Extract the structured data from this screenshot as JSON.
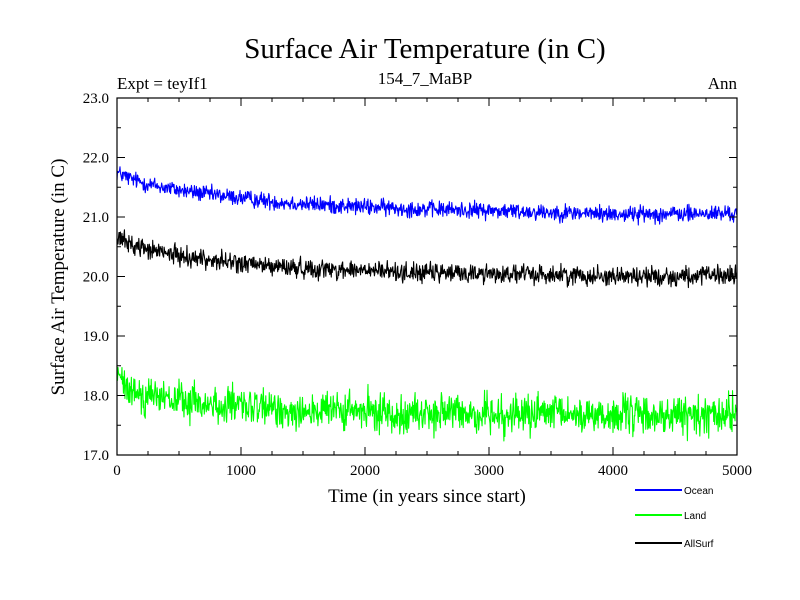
{
  "chart_data": {
    "type": "line",
    "title": "Surface Air Temperature (in C)",
    "subtitle_left": "Expt = teyIf1",
    "subtitle_center": "154_7_MaBP",
    "subtitle_right": "Ann",
    "xlabel": "Time (in years since start)",
    "ylabel": "Surface Air Temperature (in C)",
    "xlim": [
      0,
      5000
    ],
    "ylim": [
      17.0,
      23.0
    ],
    "xticks": [
      0,
      1000,
      2000,
      3000,
      4000,
      5000
    ],
    "xtick_labels": [
      "0",
      "1000",
      "2000",
      "3000",
      "4000",
      "5000"
    ],
    "yticks": [
      17.0,
      18.0,
      19.0,
      20.0,
      21.0,
      22.0,
      23.0
    ],
    "ytick_labels": [
      "17.0",
      "18.0",
      "19.0",
      "20.0",
      "21.0",
      "22.0",
      "23.0"
    ],
    "grid": false,
    "legend_position": "bottom-right, outside plot",
    "series": [
      {
        "name": "Ocean",
        "color": "#0000ff",
        "x": [
          0,
          100,
          250,
          500,
          750,
          1000,
          1250,
          1500,
          2000,
          2500,
          3000,
          3500,
          4000,
          4500,
          5000
        ],
        "values": [
          21.75,
          21.65,
          21.55,
          21.45,
          21.38,
          21.32,
          21.26,
          21.22,
          21.17,
          21.13,
          21.11,
          21.08,
          21.05,
          21.05,
          21.06
        ],
        "noise_amplitude": 0.12
      },
      {
        "name": "AllSurf",
        "color": "#000000",
        "x": [
          0,
          100,
          250,
          500,
          750,
          1000,
          1250,
          1500,
          2000,
          2500,
          3000,
          3500,
          4000,
          4500,
          5000
        ],
        "values": [
          20.65,
          20.55,
          20.45,
          20.35,
          20.28,
          20.22,
          20.17,
          20.14,
          20.1,
          20.06,
          20.05,
          20.03,
          20.01,
          20.0,
          20.02
        ],
        "noise_amplitude": 0.14
      },
      {
        "name": "Land",
        "color": "#00ff00",
        "x": [
          0,
          50,
          100,
          250,
          500,
          750,
          1000,
          1250,
          1500,
          2000,
          2500,
          3000,
          3500,
          4000,
          4500,
          5000
        ],
        "values": [
          18.35,
          18.2,
          18.1,
          18.0,
          17.9,
          17.85,
          17.8,
          17.77,
          17.75,
          17.72,
          17.7,
          17.69,
          17.68,
          17.67,
          17.66,
          17.68
        ],
        "noise_amplitude": 0.28
      }
    ],
    "legend": [
      {
        "label": "Ocean",
        "color": "#0000ff"
      },
      {
        "label": "Land",
        "color": "#00ff00"
      },
      {
        "label": "AllSurf",
        "color": "#000000"
      }
    ]
  }
}
